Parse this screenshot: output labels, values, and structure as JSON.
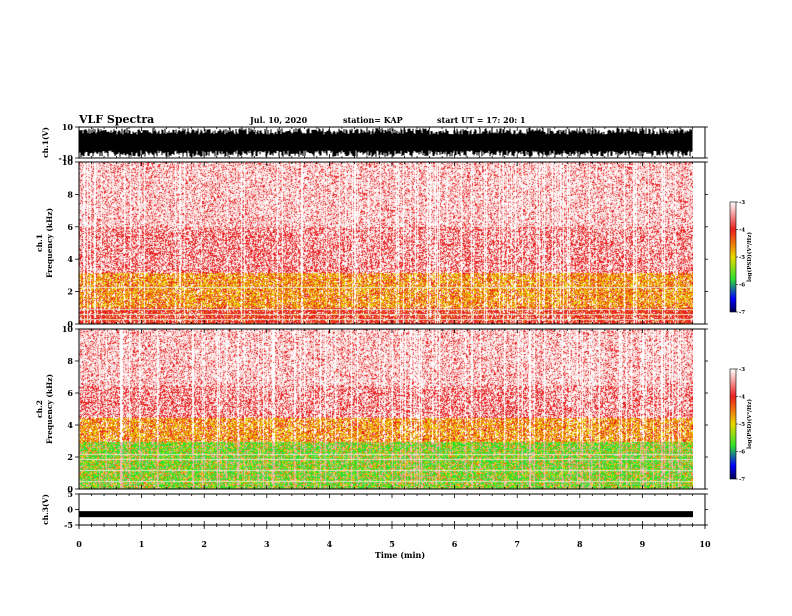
{
  "header": {
    "title": "VLF Spectra",
    "date": "Jul. 10, 2020",
    "station": "station= KAP",
    "start": "start UT =  17: 20: 1"
  },
  "chart_data": [
    {
      "type": "line",
      "panel": "waveform-ch1",
      "ylabel": "ch.1(V)",
      "ylim": [
        -10,
        10
      ],
      "y_tick_labels": [
        "10",
        "-10"
      ],
      "note": "dense black broadband waveform filling most of the range"
    },
    {
      "type": "heatmap",
      "panel": "spectrogram-ch1",
      "ylabel": "ch.1\nFrequency (kHz)",
      "ylim": [
        0,
        10
      ],
      "y_tick_labels": [
        "0",
        "2",
        "4",
        "6",
        "8",
        "10"
      ],
      "colorbar": {
        "label": "log(PSD)(V²/Hz)",
        "range": [
          -7,
          -3
        ],
        "tick_labels": [
          "-3",
          "-4",
          "-5",
          "-6",
          "-7"
        ]
      },
      "bands": [
        {
          "from_khz": 0.0,
          "to_khz": 1.0,
          "dominant": "red"
        },
        {
          "from_khz": 1.0,
          "to_khz": 3.2,
          "dominant": "yellow/orange"
        },
        {
          "from_khz": 3.2,
          "to_khz": 10.0,
          "dominant": "light red"
        }
      ]
    },
    {
      "type": "heatmap",
      "panel": "spectrogram-ch2",
      "ylabel": "ch.2\nFrequency (kHz)",
      "ylim": [
        0,
        10
      ],
      "y_tick_labels": [
        "0",
        "2",
        "4",
        "6",
        "8",
        "10"
      ],
      "colorbar": {
        "label": "log(PSD)(V²/Hz)",
        "range": [
          -7,
          -3
        ],
        "tick_labels": [
          "-3",
          "-4",
          "-5",
          "-6",
          "-7"
        ]
      },
      "bands": [
        {
          "from_khz": 0.0,
          "to_khz": 3.0,
          "dominant": "green"
        },
        {
          "from_khz": 3.0,
          "to_khz": 4.5,
          "dominant": "yellow/orange"
        },
        {
          "from_khz": 4.5,
          "to_khz": 10.0,
          "dominant": "light red"
        }
      ]
    },
    {
      "type": "line",
      "panel": "waveform-ch3",
      "ylabel": "ch.3(V)",
      "ylim": [
        -5,
        5
      ],
      "y_tick_labels": [
        "5",
        "0",
        "-5"
      ],
      "level": -1.5,
      "note": "nearly constant thick black line"
    }
  ],
  "x_axis": {
    "xlabel": "Time (min)",
    "xlim": [
      0,
      10
    ],
    "tick_labels": [
      "0",
      "1",
      "2",
      "3",
      "4",
      "5",
      "6",
      "7",
      "8",
      "9",
      "10"
    ],
    "data_end": 9.83
  },
  "colors": {
    "light_red": "#f8b6b6",
    "red": "#e82020",
    "orange": "#f07a10",
    "yellow": "#e8d800",
    "green": "#30e030",
    "blue": "#0000ff",
    "navy": "#000050"
  }
}
